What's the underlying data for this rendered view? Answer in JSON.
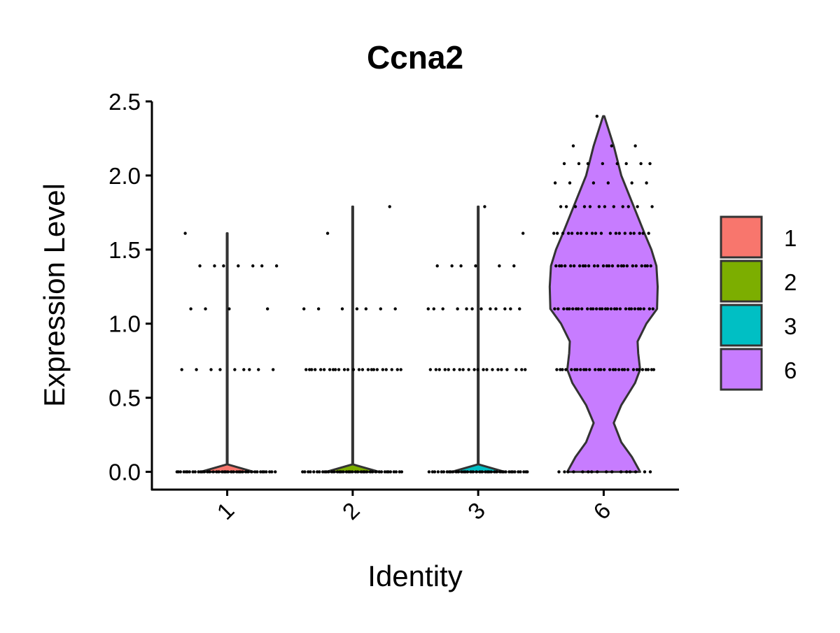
{
  "chart_data": {
    "type": "violin",
    "title": "Ccna2",
    "x_label": "Identity",
    "y_label": "Expression Level",
    "categories": [
      "1",
      "2",
      "3",
      "6"
    ],
    "ylim": [
      -0.12,
      2.5
    ],
    "yticks": [
      {
        "value": 0,
        "label": "0.0"
      },
      0.5,
      {
        "value": 1,
        "label": "1.0"
      },
      1.5,
      {
        "value": 2,
        "label": "2.0"
      },
      2.5
    ],
    "series": [
      {
        "name": "1",
        "color": "#F8766D",
        "violin": {
          "y": [
            0,
            0.05,
            1.61
          ],
          "width": [
            0.42,
            0.006,
            0.006
          ]
        },
        "points": [
          0,
          0,
          0,
          0,
          0,
          0,
          0,
          0,
          0,
          0,
          0,
          0,
          0,
          0,
          0,
          0,
          0,
          0,
          0,
          0,
          0,
          0,
          0,
          0,
          0,
          0,
          0,
          0,
          0,
          0,
          0,
          0,
          0,
          0,
          0,
          0,
          0,
          0,
          0,
          0,
          0.69,
          0.69,
          0.69,
          0.69,
          0.69,
          0.69,
          0.69,
          0.69,
          0.69,
          1.1,
          1.1,
          1.1,
          1.1,
          1.39,
          1.39,
          1.39,
          1.39,
          1.39,
          1.39,
          1.39,
          1.61
        ]
      },
      {
        "name": "2",
        "color": "#7CAE00",
        "violin": {
          "y": [
            0,
            0.05,
            1.79
          ],
          "width": [
            0.42,
            0.006,
            0.006
          ]
        },
        "points": [
          0,
          0,
          0,
          0,
          0,
          0,
          0,
          0,
          0,
          0,
          0,
          0,
          0,
          0,
          0,
          0,
          0,
          0,
          0,
          0,
          0,
          0,
          0,
          0,
          0,
          0,
          0,
          0,
          0,
          0,
          0,
          0,
          0,
          0,
          0,
          0,
          0,
          0,
          0,
          0,
          0.69,
          0.69,
          0.69,
          0.69,
          0.69,
          0.69,
          0.69,
          0.69,
          0.69,
          0.69,
          0.69,
          0.69,
          0.69,
          0.69,
          0.69,
          0.69,
          0.69,
          0.69,
          0.69,
          0.69,
          0.69,
          0.69,
          0.69,
          0.69,
          1.1,
          1.1,
          1.1,
          1.1,
          1.1,
          1.1,
          1.1,
          1.61,
          1.79
        ]
      },
      {
        "name": "3",
        "color": "#00BFC4",
        "violin": {
          "y": [
            0,
            0.05,
            1.79
          ],
          "width": [
            0.42,
            0.006,
            0.006
          ]
        },
        "points": [
          0,
          0,
          0,
          0,
          0,
          0,
          0,
          0,
          0,
          0,
          0,
          0,
          0,
          0,
          0,
          0,
          0,
          0,
          0,
          0,
          0,
          0,
          0,
          0,
          0,
          0,
          0,
          0,
          0,
          0,
          0,
          0,
          0,
          0,
          0,
          0,
          0,
          0,
          0,
          0,
          0.69,
          0.69,
          0.69,
          0.69,
          0.69,
          0.69,
          0.69,
          0.69,
          0.69,
          0.69,
          0.69,
          0.69,
          0.69,
          0.69,
          0.69,
          0.69,
          0.69,
          0.69,
          0.69,
          0.69,
          1.1,
          1.1,
          1.1,
          1.1,
          1.1,
          1.1,
          1.1,
          1.1,
          1.1,
          1.1,
          1.1,
          1.1,
          1.39,
          1.39,
          1.39,
          1.39,
          1.39,
          1.39,
          1.61,
          1.79
        ]
      },
      {
        "name": "6",
        "color": "#C77CFF",
        "violin": {
          "y": [
            0,
            0.1,
            0.2,
            0.33,
            0.45,
            0.6,
            0.69,
            0.8,
            0.88,
            1.0,
            1.1,
            1.25,
            1.39,
            1.5,
            1.61,
            1.8,
            2.0,
            2.2,
            2.4
          ],
          "width": [
            0.58,
            0.45,
            0.28,
            0.16,
            0.28,
            0.5,
            0.58,
            0.55,
            0.54,
            0.68,
            0.85,
            0.86,
            0.84,
            0.76,
            0.65,
            0.47,
            0.28,
            0.16,
            0.01
          ]
        },
        "points": [
          0,
          0,
          0,
          0,
          0,
          0,
          0,
          0,
          0,
          0,
          0,
          0,
          0,
          0,
          0,
          0,
          0.69,
          0.69,
          0.69,
          0.69,
          0.69,
          0.69,
          0.69,
          0.69,
          0.69,
          0.69,
          0.69,
          0.69,
          0.69,
          0.69,
          0.69,
          0.69,
          0.69,
          0.69,
          0.69,
          0.69,
          0.69,
          0.69,
          0.69,
          0.69,
          0.69,
          0.69,
          0.69,
          0.69,
          0.69,
          0.69,
          1.1,
          1.1,
          1.1,
          1.1,
          1.1,
          1.1,
          1.1,
          1.1,
          1.1,
          1.1,
          1.1,
          1.1,
          1.1,
          1.1,
          1.1,
          1.1,
          1.1,
          1.1,
          1.1,
          1.1,
          1.1,
          1.1,
          1.1,
          1.1,
          1.1,
          1.1,
          1.1,
          1.1,
          1.1,
          1.1,
          1.39,
          1.39,
          1.39,
          1.39,
          1.39,
          1.39,
          1.39,
          1.39,
          1.39,
          1.39,
          1.39,
          1.39,
          1.39,
          1.39,
          1.39,
          1.39,
          1.39,
          1.39,
          1.39,
          1.39,
          1.39,
          1.39,
          1.39,
          1.39,
          1.39,
          1.39,
          1.61,
          1.61,
          1.61,
          1.61,
          1.61,
          1.61,
          1.61,
          1.61,
          1.61,
          1.61,
          1.61,
          1.61,
          1.61,
          1.61,
          1.61,
          1.61,
          1.61,
          1.61,
          1.61,
          1.61,
          1.79,
          1.79,
          1.79,
          1.79,
          1.79,
          1.79,
          1.79,
          1.79,
          1.79,
          1.79,
          1.79,
          1.79,
          1.95,
          1.95,
          1.95,
          1.95,
          1.95,
          1.95,
          2.08,
          2.08,
          2.08,
          2.08,
          2.08,
          2.08,
          2.08,
          2.08,
          2.2,
          2.2,
          2.2,
          2.4
        ]
      }
    ],
    "legend_position": "right"
  }
}
